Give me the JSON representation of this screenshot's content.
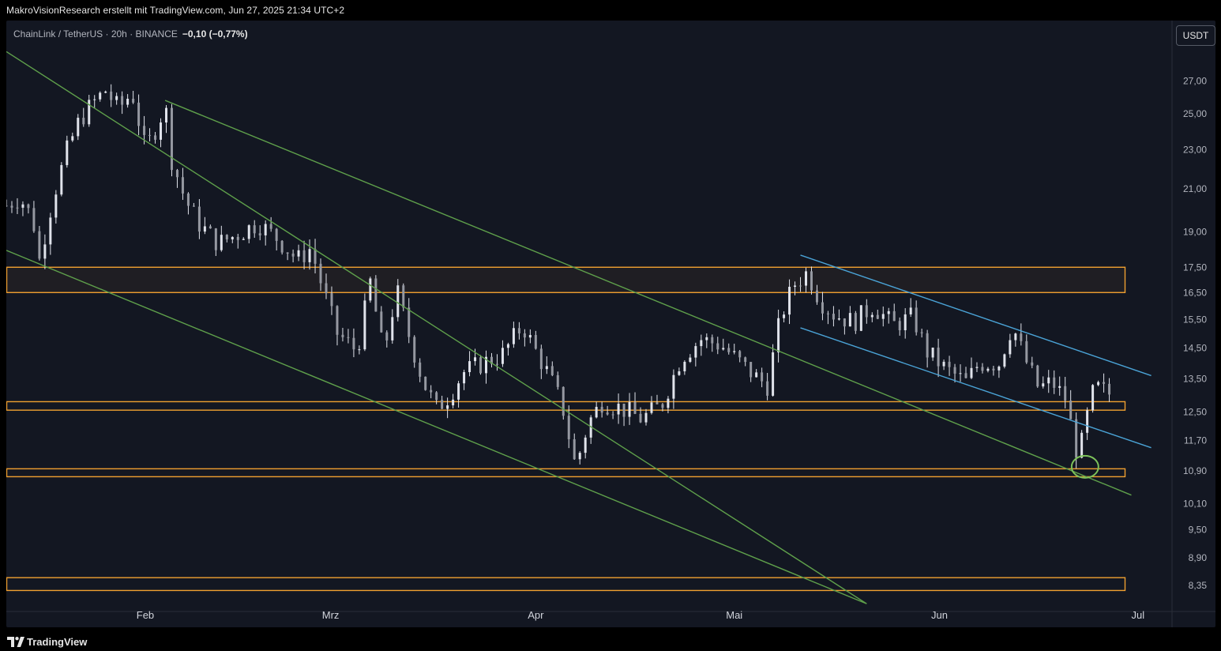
{
  "header": {
    "text": "MakroVisionResearch erstellt mit TradingView.com, Jun 27, 2025 21:34 UTC+2"
  },
  "legend": {
    "symbol": "ChainLink / TetherUS · 20h · BINANCE",
    "change": "−0,10 (−0,77%)"
  },
  "currency": "USDT",
  "footer": {
    "brand": "TradingView"
  },
  "colors": {
    "background": "#131722",
    "candle": "#e0e3eb",
    "zone": "#f0a030",
    "channel_green": "#5fa04b",
    "channel_blue": "#4aa3d6",
    "marker": "#7dc25a"
  },
  "chart_data": {
    "type": "candlestick",
    "scale": "log",
    "y_ticks": [
      27.0,
      25.0,
      23.0,
      21.0,
      19.0,
      17.5,
      16.5,
      15.5,
      14.5,
      13.5,
      12.5,
      11.7,
      10.9,
      10.1,
      9.5,
      8.9,
      8.35
    ],
    "y_tick_labels": [
      "27,00",
      "25,00",
      "23,00",
      "21,00",
      "19,00",
      "17,50",
      "16,50",
      "15,50",
      "14,50",
      "13,50",
      "12,50",
      "11,70",
      "10,90",
      "10,10",
      "9,50",
      "8,90",
      "8,35"
    ],
    "x_ticks": [
      {
        "label": "Feb",
        "date": "2025-02-01"
      },
      {
        "label": "Mrz",
        "date": "2025-03-01"
      },
      {
        "label": "Apr",
        "date": "2025-04-01"
      },
      {
        "label": "Mai",
        "date": "2025-05-01"
      },
      {
        "label": "Jun",
        "date": "2025-06-01"
      },
      {
        "label": "Jul",
        "date": "2025-07-01"
      }
    ],
    "x_range": [
      "2025-01-11",
      "2025-07-04"
    ],
    "y_range": [
      7.9,
      29.4
    ],
    "close_path": [
      [
        "2025-01-11",
        20.2
      ],
      [
        "2025-01-13",
        20.6
      ],
      [
        "2025-01-15",
        19.6
      ],
      [
        "2025-01-16",
        17.8
      ],
      [
        "2025-01-18",
        20.5
      ],
      [
        "2025-01-20",
        22.8
      ],
      [
        "2025-01-22",
        24.6
      ],
      [
        "2025-01-24",
        25.6
      ],
      [
        "2025-01-26",
        26.4
      ],
      [
        "2025-01-28",
        25.3
      ],
      [
        "2025-01-30",
        26.3
      ],
      [
        "2025-02-01",
        23.0
      ],
      [
        "2025-02-03",
        24.5
      ],
      [
        "2025-02-04",
        25.6
      ],
      [
        "2025-02-05",
        22.5
      ],
      [
        "2025-02-07",
        20.5
      ],
      [
        "2025-02-09",
        19.4
      ],
      [
        "2025-02-12",
        18.5
      ],
      [
        "2025-02-15",
        18.9
      ],
      [
        "2025-02-18",
        19.4
      ],
      [
        "2025-02-21",
        18.7
      ],
      [
        "2025-02-24",
        17.8
      ],
      [
        "2025-02-26",
        18.3
      ],
      [
        "2025-02-28",
        16.5
      ],
      [
        "2025-03-02",
        15.0
      ],
      [
        "2025-03-05",
        14.4
      ],
      [
        "2025-03-07",
        16.9
      ],
      [
        "2025-03-09",
        14.3
      ],
      [
        "2025-03-11",
        16.6
      ],
      [
        "2025-03-13",
        14.8
      ],
      [
        "2025-03-15",
        13.4
      ],
      [
        "2025-03-17",
        12.6
      ],
      [
        "2025-03-19",
        13.0
      ],
      [
        "2025-03-21",
        13.7
      ],
      [
        "2025-03-24",
        14.0
      ],
      [
        "2025-03-27",
        14.3
      ],
      [
        "2025-03-30",
        15.3
      ],
      [
        "2025-04-01",
        14.4
      ],
      [
        "2025-04-03",
        13.6
      ],
      [
        "2025-04-05",
        12.7
      ],
      [
        "2025-04-07",
        11.0
      ],
      [
        "2025-04-09",
        12.2
      ],
      [
        "2025-04-11",
        12.8
      ],
      [
        "2025-04-14",
        12.6
      ],
      [
        "2025-04-17",
        12.3
      ],
      [
        "2025-04-20",
        12.7
      ],
      [
        "2025-04-23",
        14.2
      ],
      [
        "2025-04-26",
        14.8
      ],
      [
        "2025-04-29",
        14.6
      ],
      [
        "2025-05-01",
        14.2
      ],
      [
        "2025-05-04",
        13.6
      ],
      [
        "2025-05-06",
        13.3
      ],
      [
        "2025-05-08",
        15.6
      ],
      [
        "2025-05-10",
        16.8
      ],
      [
        "2025-05-12",
        17.3
      ],
      [
        "2025-05-14",
        16.2
      ],
      [
        "2025-05-16",
        15.7
      ],
      [
        "2025-05-19",
        15.4
      ],
      [
        "2025-05-22",
        16.0
      ],
      [
        "2025-05-25",
        15.3
      ],
      [
        "2025-05-28",
        15.6
      ],
      [
        "2025-05-30",
        14.4
      ],
      [
        "2025-06-02",
        13.8
      ],
      [
        "2025-06-05",
        13.4
      ],
      [
        "2025-06-07",
        14.0
      ],
      [
        "2025-06-10",
        14.0
      ],
      [
        "2025-06-12",
        15.3
      ],
      [
        "2025-06-14",
        14.1
      ],
      [
        "2025-06-16",
        13.2
      ],
      [
        "2025-06-18",
        13.4
      ],
      [
        "2025-06-20",
        12.9
      ],
      [
        "2025-06-22",
        11.2
      ],
      [
        "2025-06-24",
        13.0
      ],
      [
        "2025-06-25",
        13.2
      ],
      [
        "2025-06-27",
        13.0
      ]
    ],
    "horizontal_zones": [
      {
        "low": 16.5,
        "high": 17.5,
        "filled": true
      },
      {
        "low": 12.55,
        "high": 12.8,
        "filled": false
      },
      {
        "low": 10.75,
        "high": 10.95,
        "filled": false
      },
      {
        "low": 8.25,
        "high": 8.5,
        "filled": false
      }
    ],
    "trend_lines": [
      {
        "color": "green",
        "from": [
          "2025-01-11",
          28.9
        ],
        "to": [
          "2025-05-21",
          8.0
        ]
      },
      {
        "color": "green",
        "from": [
          "2025-01-11",
          18.2
        ],
        "to": [
          "2025-05-21",
          8.0
        ]
      },
      {
        "color": "green",
        "from": [
          "2025-02-04",
          25.8
        ],
        "to": [
          "2025-06-30",
          10.3
        ]
      },
      {
        "color": "blue",
        "from": [
          "2025-05-11",
          18.0
        ],
        "to": [
          "2025-07-03",
          13.6
        ]
      },
      {
        "color": "blue",
        "from": [
          "2025-05-11",
          15.2
        ],
        "to": [
          "2025-07-03",
          11.5
        ]
      }
    ],
    "highlight_circle": {
      "date": "2025-06-23",
      "value": 11.0
    }
  }
}
